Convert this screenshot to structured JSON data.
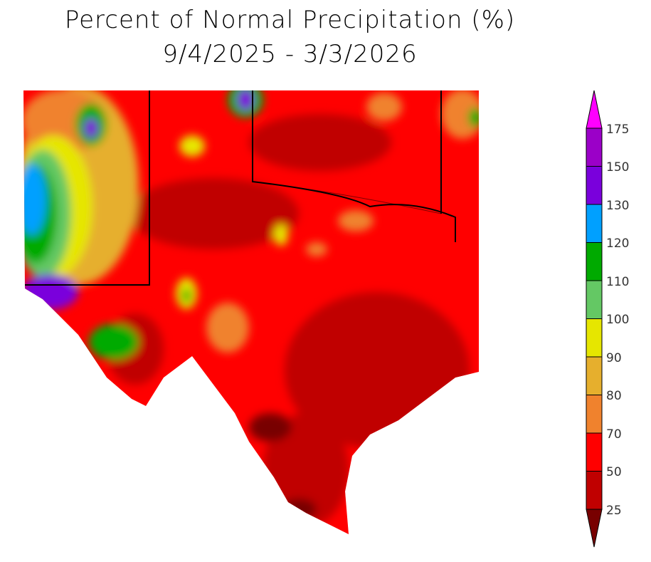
{
  "title": "Percent of Normal Precipitation (%)",
  "subtitle": "9/4/2025 - 3/3/2026",
  "legend": {
    "labels": [
      "175",
      "150",
      "130",
      "120",
      "110",
      "100",
      "90",
      "80",
      "70",
      "50",
      "25"
    ],
    "colors_top_to_bottom": [
      "#ff00ff",
      "#9b00c8",
      "#7a00dc",
      "#00a0ff",
      "#00aa00",
      "#64c864",
      "#e6e600",
      "#e6af2d",
      "#f0822d",
      "#ff0000",
      "#c00000",
      "#780000"
    ]
  }
}
